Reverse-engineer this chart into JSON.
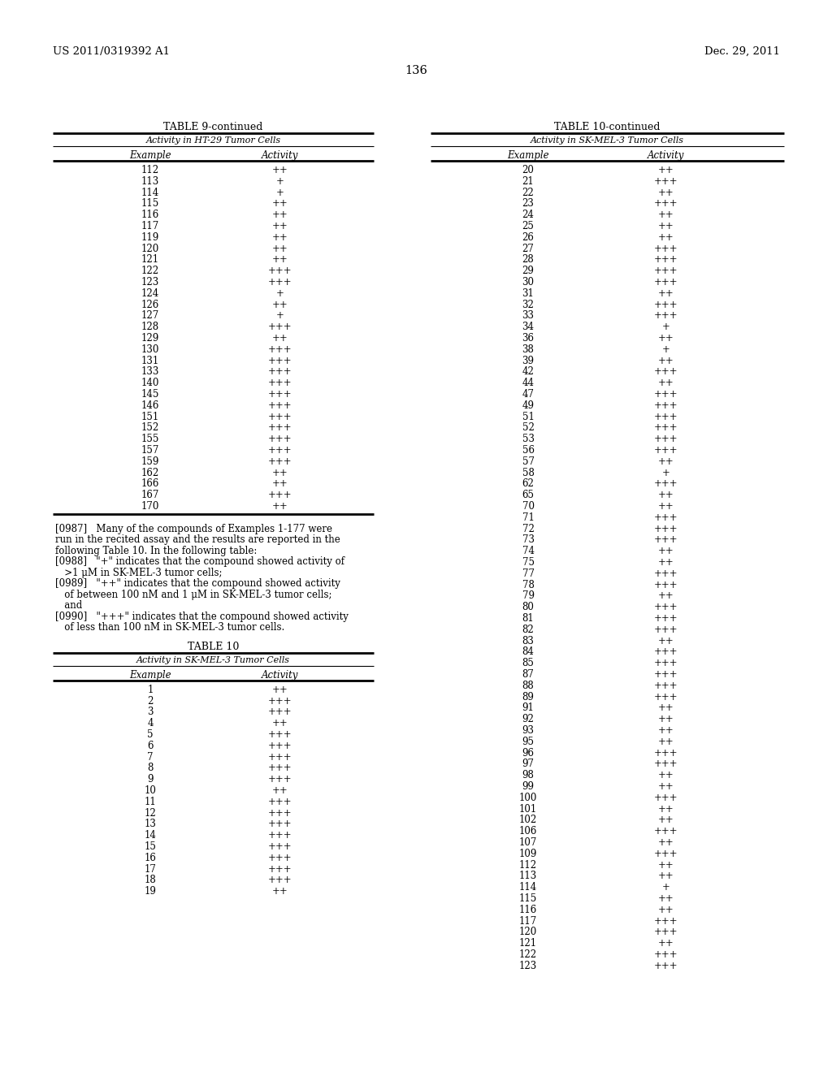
{
  "page_number": "136",
  "patent_number": "US 2011/0319392 A1",
  "patent_date": "Dec. 29, 2011",
  "background_color": "#ffffff",
  "table9_title": "TABLE 9-continued",
  "table9_subtitle": "Activity in HT-29 Tumor Cells",
  "table9_col1": "Example",
  "table9_col2": "Activity",
  "table9_data": [
    [
      "112",
      "++"
    ],
    [
      "113",
      "+"
    ],
    [
      "114",
      "+"
    ],
    [
      "115",
      "++"
    ],
    [
      "116",
      "++"
    ],
    [
      "117",
      "++"
    ],
    [
      "119",
      "++"
    ],
    [
      "120",
      "++"
    ],
    [
      "121",
      "++"
    ],
    [
      "122",
      "+++"
    ],
    [
      "123",
      "+++"
    ],
    [
      "124",
      "+"
    ],
    [
      "126",
      "++"
    ],
    [
      "127",
      "+"
    ],
    [
      "128",
      "+++"
    ],
    [
      "129",
      "++"
    ],
    [
      "130",
      "+++"
    ],
    [
      "131",
      "+++"
    ],
    [
      "133",
      "+++"
    ],
    [
      "140",
      "+++"
    ],
    [
      "145",
      "+++"
    ],
    [
      "146",
      "+++"
    ],
    [
      "151",
      "+++"
    ],
    [
      "152",
      "+++"
    ],
    [
      "155",
      "+++"
    ],
    [
      "157",
      "+++"
    ],
    [
      "159",
      "+++"
    ],
    [
      "162",
      "++"
    ],
    [
      "166",
      "++"
    ],
    [
      "167",
      "+++"
    ],
    [
      "170",
      "++"
    ]
  ],
  "table10c_title": "TABLE 10-continued",
  "table10c_subtitle": "Activity in SK-MEL-3 Tumor Cells",
  "table10c_col1": "Example",
  "table10c_col2": "Activity",
  "table10c_data": [
    [
      "20",
      "++"
    ],
    [
      "21",
      "+++"
    ],
    [
      "22",
      "++"
    ],
    [
      "23",
      "+++"
    ],
    [
      "24",
      "++"
    ],
    [
      "25",
      "++"
    ],
    [
      "26",
      "++"
    ],
    [
      "27",
      "+++"
    ],
    [
      "28",
      "+++"
    ],
    [
      "29",
      "+++"
    ],
    [
      "30",
      "+++"
    ],
    [
      "31",
      "++"
    ],
    [
      "32",
      "+++"
    ],
    [
      "33",
      "+++"
    ],
    [
      "34",
      "+"
    ],
    [
      "36",
      "++"
    ],
    [
      "38",
      "+"
    ],
    [
      "39",
      "++"
    ],
    [
      "42",
      "+++"
    ],
    [
      "44",
      "++"
    ],
    [
      "47",
      "+++"
    ],
    [
      "49",
      "+++"
    ],
    [
      "51",
      "+++"
    ],
    [
      "52",
      "+++"
    ],
    [
      "53",
      "+++"
    ],
    [
      "56",
      "+++"
    ],
    [
      "57",
      "++"
    ],
    [
      "58",
      "+"
    ],
    [
      "62",
      "+++"
    ],
    [
      "65",
      "++"
    ],
    [
      "70",
      "++"
    ],
    [
      "71",
      "+++"
    ],
    [
      "72",
      "+++"
    ],
    [
      "73",
      "+++"
    ],
    [
      "74",
      "++"
    ],
    [
      "75",
      "++"
    ],
    [
      "77",
      "+++"
    ],
    [
      "78",
      "+++"
    ],
    [
      "79",
      "++"
    ],
    [
      "80",
      "+++"
    ],
    [
      "81",
      "+++"
    ],
    [
      "82",
      "+++"
    ],
    [
      "83",
      "++"
    ],
    [
      "84",
      "+++"
    ],
    [
      "85",
      "+++"
    ],
    [
      "87",
      "+++"
    ],
    [
      "88",
      "+++"
    ],
    [
      "89",
      "+++"
    ],
    [
      "91",
      "++"
    ],
    [
      "92",
      "++"
    ],
    [
      "93",
      "++"
    ],
    [
      "95",
      "++"
    ],
    [
      "96",
      "+++"
    ],
    [
      "97",
      "+++"
    ],
    [
      "98",
      "++"
    ],
    [
      "99",
      "++"
    ],
    [
      "100",
      "+++"
    ],
    [
      "101",
      "++"
    ],
    [
      "102",
      "++"
    ],
    [
      "106",
      "+++"
    ],
    [
      "107",
      "++"
    ],
    [
      "109",
      "+++"
    ],
    [
      "112",
      "++"
    ],
    [
      "113",
      "++"
    ],
    [
      "114",
      "+"
    ],
    [
      "115",
      "++"
    ],
    [
      "116",
      "++"
    ],
    [
      "117",
      "+++"
    ],
    [
      "120",
      "+++"
    ],
    [
      "121",
      "++"
    ],
    [
      "122",
      "+++"
    ],
    [
      "123",
      "+++"
    ]
  ],
  "para_0987_lines": [
    "[0987]   Many of the compounds of Examples 1-177 were",
    "run in the recited assay and the results are reported in the",
    "following Table 10. In the following table:"
  ],
  "para_0988_line1": "[0988]   \"+\" indicates that the compound showed activity of",
  "para_0988_line2": "   >1 μM in SK-MEL-3 tumor cells;",
  "para_0989_line1": "[0989]   \"++\" indicates that the compound showed activity",
  "para_0989_line2": "   of between 100 nM and 1 μM in SK-MEL-3 tumor cells;",
  "para_0989_line3": "   and",
  "para_0990_line1": "[0990]   \"+++\" indicates that the compound showed activity",
  "para_0990_line2": "   of less than 100 nM in SK-MEL-3 tumor cells.",
  "table10_title": "TABLE 10",
  "table10_subtitle": "Activity in SK-MEL-3 Tumor Cells",
  "table10_col1": "Example",
  "table10_col2": "Activity",
  "table10_data": [
    [
      "1",
      "++"
    ],
    [
      "2",
      "+++"
    ],
    [
      "3",
      "+++"
    ],
    [
      "4",
      "++"
    ],
    [
      "5",
      "+++"
    ],
    [
      "6",
      "+++"
    ],
    [
      "7",
      "+++"
    ],
    [
      "8",
      "+++"
    ],
    [
      "9",
      "+++"
    ],
    [
      "10",
      "++"
    ],
    [
      "11",
      "+++"
    ],
    [
      "12",
      "+++"
    ],
    [
      "13",
      "+++"
    ],
    [
      "14",
      "+++"
    ],
    [
      "15",
      "+++"
    ],
    [
      "16",
      "+++"
    ],
    [
      "17",
      "+++"
    ],
    [
      "18",
      "+++"
    ],
    [
      "19",
      "++"
    ]
  ]
}
